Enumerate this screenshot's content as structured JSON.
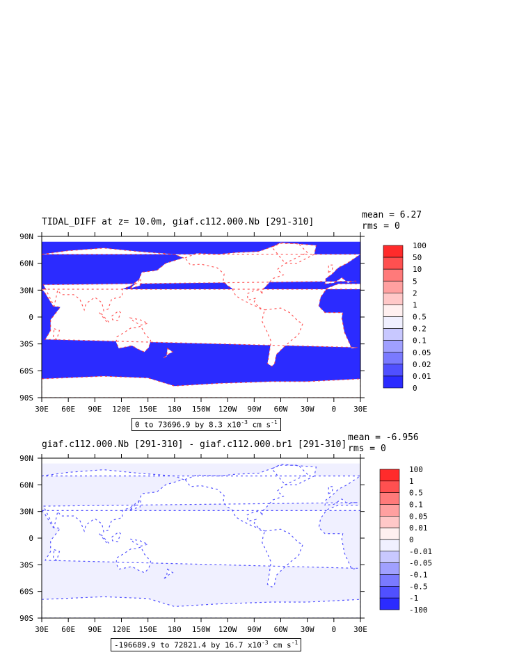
{
  "panels": [
    {
      "title": "TIDAL_DIFF at z=  10.0m, giaf.c112.000.Nb [291-310]",
      "mean": "mean = 6.27",
      "rms": "rms = 0",
      "range_prefix": "0 to 73696.9 by 8.3 x10",
      "range_exp": "-3",
      "range_units": " cm s",
      "range_units_exp": "-1",
      "colorbar_labels": [
        "100",
        "50",
        "10",
        "5",
        "2",
        "1",
        "0.5",
        "0.2",
        "0.1",
        "0.05",
        "0.02",
        "0.01",
        "0"
      ],
      "colorbar_colors": [
        "#ff2b2b",
        "#ff5050",
        "#ff7a7a",
        "#ffa0a0",
        "#ffc8c8",
        "#fff0f0",
        "#f0f0ff",
        "#c8c8ff",
        "#a0a0ff",
        "#7a7aff",
        "#5050ff",
        "#2b2bff"
      ]
    },
    {
      "title": "giaf.c112.000.Nb [291-310] - giaf.c112.000.br1 [291-310]",
      "mean": "mean = -6.956",
      "rms": "rms = 0",
      "range_prefix": "-196689.9 to 72821.4 by 16.7 x10",
      "range_exp": "-3",
      "range_units": " cm s",
      "range_units_exp": "-1",
      "colorbar_labels": [
        "100",
        "1",
        "0.5",
        "0.1",
        "0.05",
        "0.01",
        "0",
        "-0.01",
        "-0.05",
        "-0.1",
        "-0.5",
        "-1",
        "-100"
      ],
      "colorbar_colors": [
        "#ff2b2b",
        "#ff5050",
        "#ff7a7a",
        "#ffa0a0",
        "#ffc8c8",
        "#fff0f0",
        "#f0f0ff",
        "#c8c8ff",
        "#a0a0ff",
        "#7a7aff",
        "#5050ff",
        "#2b2bff"
      ]
    }
  ],
  "chart_data": [
    {
      "type": "heatmap",
      "title": "TIDAL_DIFF at z=  10.0m, giaf.c112.000.Nb [291-310]",
      "x_tick_labels": [
        "30E",
        "60E",
        "90E",
        "120E",
        "150E",
        "180",
        "150W",
        "120W",
        "90W",
        "60W",
        "30W",
        "0",
        "30E"
      ],
      "y_tick_labels": [
        "90N",
        "60N",
        "30N",
        "0",
        "30S",
        "60S",
        "90S"
      ],
      "xlim": [
        30,
        390
      ],
      "ylim": [
        -90,
        90
      ],
      "colorbar_levels": [
        0,
        0.01,
        0.02,
        0.05,
        0.1,
        0.2,
        0.5,
        1,
        2,
        5,
        10,
        50,
        100
      ],
      "mean": 6.27,
      "rms": 0,
      "land_color": "#ffffff",
      "dominant_ocean_color": "#2b2bff"
    },
    {
      "type": "heatmap",
      "title": "giaf.c112.000.Nb [291-310] - giaf.c112.000.br1 [291-310]",
      "x_tick_labels": [
        "30E",
        "60E",
        "90E",
        "120E",
        "150E",
        "180",
        "150W",
        "120W",
        "90W",
        "60W",
        "30W",
        "0",
        "30E"
      ],
      "y_tick_labels": [
        "90N",
        "60N",
        "30N",
        "0",
        "30S",
        "60S",
        "90S"
      ],
      "xlim": [
        30,
        390
      ],
      "ylim": [
        -90,
        90
      ],
      "colorbar_levels": [
        -100,
        -1,
        -0.5,
        -0.1,
        -0.05,
        -0.01,
        0,
        0.01,
        0.05,
        0.1,
        0.5,
        1,
        100
      ],
      "mean": -6.956,
      "rms": 0,
      "land_color": "#ffffff",
      "dominant_ocean_color": "#f0f0ff"
    }
  ]
}
